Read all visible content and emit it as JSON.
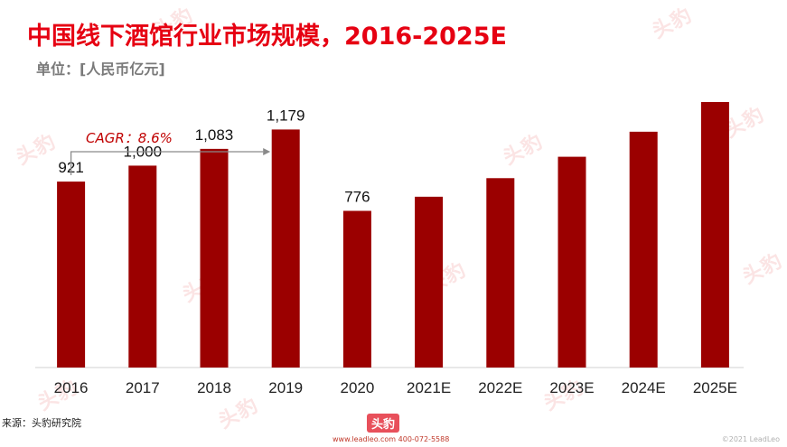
{
  "header": {
    "title": "中国线下酒馆行业市场规模，2016-2025E",
    "unit": "单位：[人民币亿元]"
  },
  "watermark": {
    "text": "头豹",
    "color": "#fbe4e4"
  },
  "footer": {
    "source": "来源：头豹研究院",
    "logo": "头豹",
    "contact": "www.leadleo.com  400-072-5588",
    "copyright": "©2021 LeadLeo"
  },
  "colors": {
    "bar": "#9b0000",
    "title": "#e60012",
    "cagr": "#c00000"
  },
  "chart_data": {
    "type": "bar",
    "title": "中国线下酒馆行业市场规模，2016-2025E",
    "categories": [
      "2016",
      "2017",
      "2018",
      "2019",
      "2020",
      "2021E",
      "2022E",
      "2023E",
      "2024E",
      "2025E"
    ],
    "values": [
      921,
      1000,
      1083,
      1179,
      776,
      846,
      938,
      1044,
      1168,
      1315
    ],
    "data_labels": [
      "921",
      "1,000",
      "1,083",
      "1,179",
      "776",
      "",
      "",
      "",
      "",
      ""
    ],
    "annotation": "CAGR：8.6%",
    "ylim": [
      0,
      1315
    ],
    "grid": false,
    "legend": "none"
  }
}
